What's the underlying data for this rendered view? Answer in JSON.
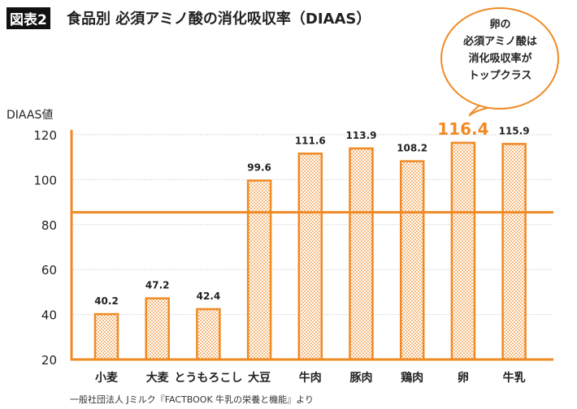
{
  "header": {
    "badge": "図表2",
    "title": "食品別 必須アミノ酸の消化吸収率（DIAAS）"
  },
  "callout": {
    "lines": [
      "卵の",
      "必須アミノ酸は",
      "消化吸収率が",
      "トップクラス"
    ]
  },
  "source": "一般社団法人 Jミルク『FACTBOOK 牛乳の栄養と機能』より",
  "colors": {
    "accent": "#f08a24",
    "text": "#222222",
    "grid": "#bbbbbb"
  },
  "chart_data": {
    "type": "bar",
    "title": "食品別 必須アミノ酸の消化吸収率（DIAAS）",
    "ylabel": "DIAAS値",
    "xlabel": "",
    "categories": [
      "小麦",
      "大麦",
      "とうもろこし",
      "大豆",
      "牛肉",
      "豚肉",
      "鶏肉",
      "卵",
      "牛乳"
    ],
    "values": [
      40.2,
      47.2,
      42.4,
      99.6,
      111.6,
      113.9,
      108.2,
      116.4,
      115.9
    ],
    "value_labels": [
      "40.2",
      "47.2",
      "42.4",
      "99.6",
      "111.6",
      "113.9",
      "108.2",
      "116.4",
      "115.9"
    ],
    "highlight_index": 7,
    "ylim": [
      20,
      120
    ],
    "yticks": [
      "20",
      "40",
      "60",
      "80",
      "100",
      "120"
    ],
    "reference_line": 85.5,
    "grid": "dotted horizontal",
    "bar_fill": "dotted pattern"
  }
}
